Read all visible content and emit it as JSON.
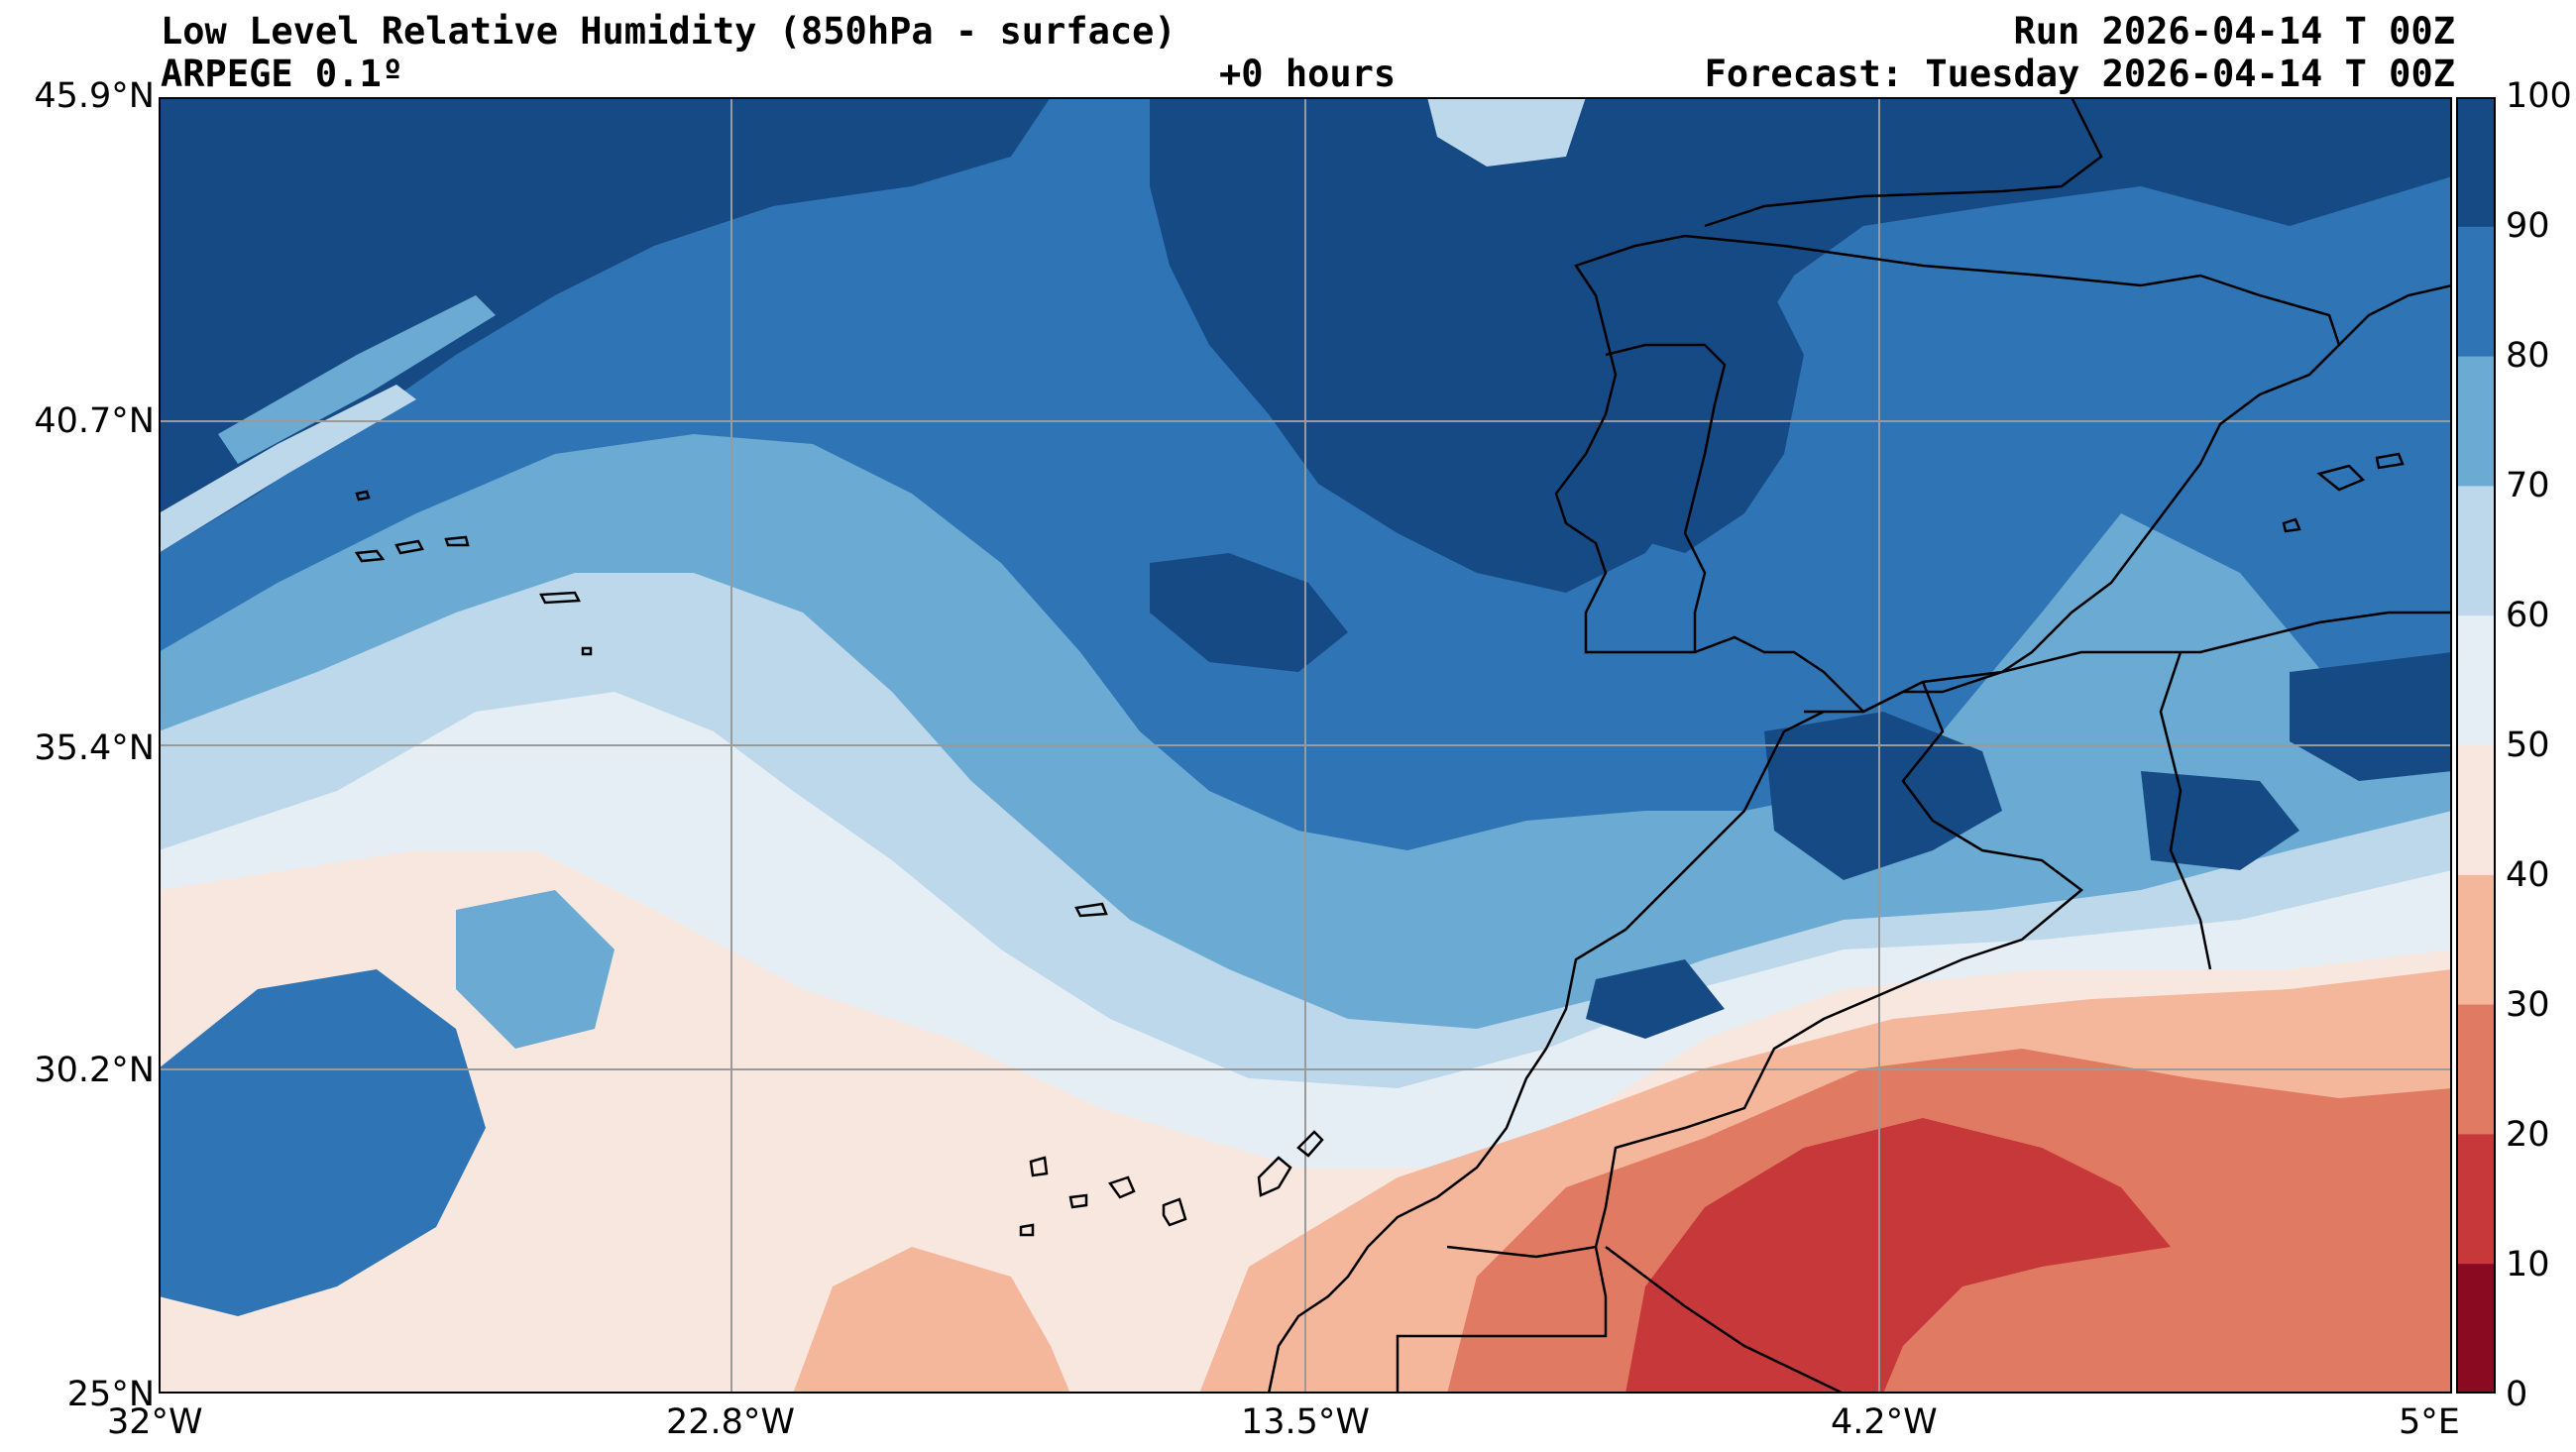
{
  "header": {
    "title": "Low Level Relative Humidity (850hPa - surface)",
    "model": "ARPEGE 0.1º",
    "lead_time": "+0 hours",
    "run": "Run 2026-04-14 T 00Z",
    "forecast": "Forecast: Tuesday 2026-04-14 T 00Z"
  },
  "axes": {
    "lat_labels": [
      "45.9°N",
      "40.7°N",
      "35.4°N",
      "30.2°N",
      "25°N"
    ],
    "lon_labels": [
      "32°W",
      "22.8°W",
      "13.5°W",
      "4.2°W",
      "5°E"
    ]
  },
  "colorbar": {
    "ticks": [
      "100",
      "90",
      "80",
      "70",
      "60",
      "50",
      "40",
      "30",
      "20",
      "10",
      "0"
    ],
    "colors": [
      "#164a85",
      "#2f74b5",
      "#6aaad3",
      "#bcd8ea",
      "#e6eef5",
      "#f8e7de",
      "#f5b79c",
      "#e17a62",
      "#c6383a",
      "#8a0a22"
    ]
  },
  "palette": {
    "rh_90_100": "#164a85",
    "rh_80_90": "#2f74b5",
    "rh_70_80": "#6aaad3",
    "rh_60_70": "#bcd8ea",
    "rh_50_60": "#e6eef5",
    "rh_40_50": "#f8e7de",
    "rh_30_40": "#f5b79c",
    "rh_20_30": "#e17a62",
    "rh_10_20": "#c6383a",
    "rh_0_10": "#8a0a22",
    "coastline": "#000000",
    "gridline": "#9a9a9a"
  }
}
